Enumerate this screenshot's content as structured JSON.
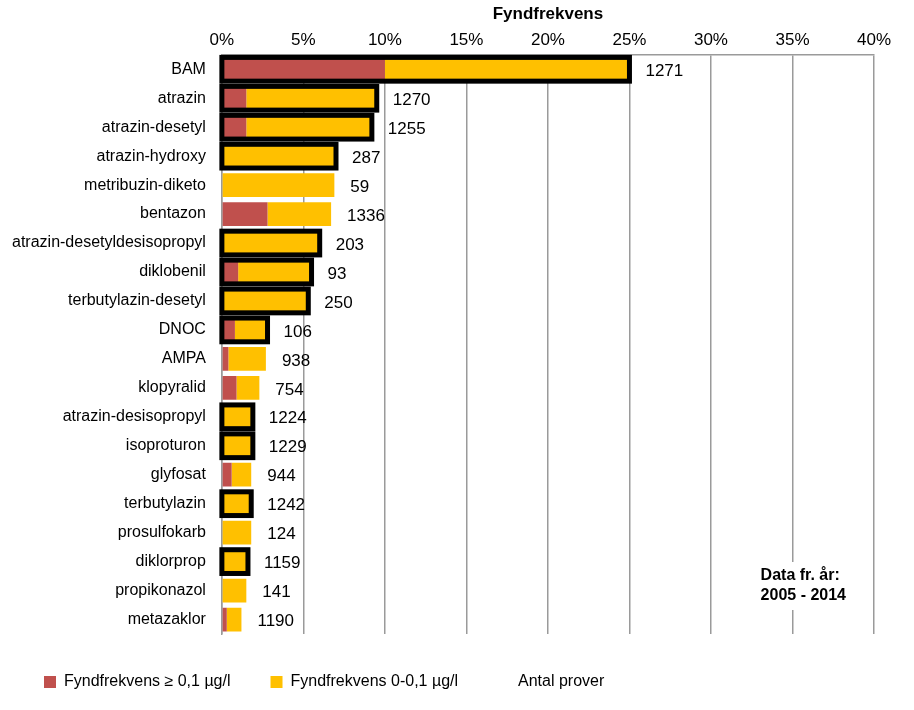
{
  "chart_data": {
    "type": "bar",
    "orientation": "horizontal",
    "stacked": true,
    "grid": true,
    "legend": "bottom",
    "data_labels": false,
    "x_label": "Fyndfrekvens",
    "categories": [
      "BAM",
      "atrazin",
      "atrazin-desetyl",
      "atrazin-hydroxy",
      "metribuzin-diketo",
      "bentazon",
      "atrazin-desetyldesisopropyl",
      "diklobenil",
      "terbutylazin-desetyl",
      "DNOC",
      "AMPA",
      "klopyralid",
      "atrazin-desisopropyl",
      "isoproturon",
      "glyfosat",
      "terbutylazin",
      "prosulfokarb",
      "diklorprop",
      "propikonazol",
      "metazaklor"
    ],
    "series": [
      {
        "name": "Fyndfrekvens ≥ 0,1 µg/l",
        "color": "#c0504d",
        "values": [
          10,
          1.5,
          1.5,
          0,
          0,
          2.8,
          0,
          1.0,
          0,
          0.8,
          0.4,
          0.9,
          0,
          0,
          0.6,
          0,
          0,
          0,
          0,
          0.3
        ]
      },
      {
        "name": "Fyndfrekvens 0-0,1 µg/l",
        "color": "#ffc000",
        "values": [
          15,
          8,
          7.7,
          7,
          6.9,
          3.9,
          6,
          4.5,
          5.3,
          2,
          2.3,
          1.4,
          1.9,
          1.9,
          1.2,
          1.8,
          1.8,
          1.6,
          1.5,
          0.9
        ]
      }
    ],
    "sample_counts": {
      "name": "Antal prover",
      "values": [
        1271,
        1270,
        1255,
        287,
        59,
        1336,
        203,
        93,
        250,
        106,
        938,
        754,
        1224,
        1229,
        944,
        1242,
        124,
        1159,
        141,
        1190
      ]
    },
    "outlined": [
      true,
      true,
      true,
      true,
      false,
      false,
      true,
      true,
      true,
      true,
      false,
      false,
      true,
      true,
      false,
      true,
      false,
      true,
      false,
      false
    ],
    "xlim": [
      0,
      40
    ],
    "xticks": [
      {
        "value": 0,
        "label": "0%"
      },
      {
        "value": 5,
        "label": "5%"
      },
      {
        "value": 10,
        "label": "10%"
      },
      {
        "value": 15,
        "label": "15%"
      },
      {
        "value": 20,
        "label": "20%"
      },
      {
        "value": 25,
        "label": "25%"
      },
      {
        "value": 30,
        "label": "30%"
      },
      {
        "value": 35,
        "label": "35%"
      },
      {
        "value": 40,
        "label": "40%"
      }
    ],
    "annotations": [
      "Data fr. år:",
      "2005 - 2014"
    ]
  }
}
